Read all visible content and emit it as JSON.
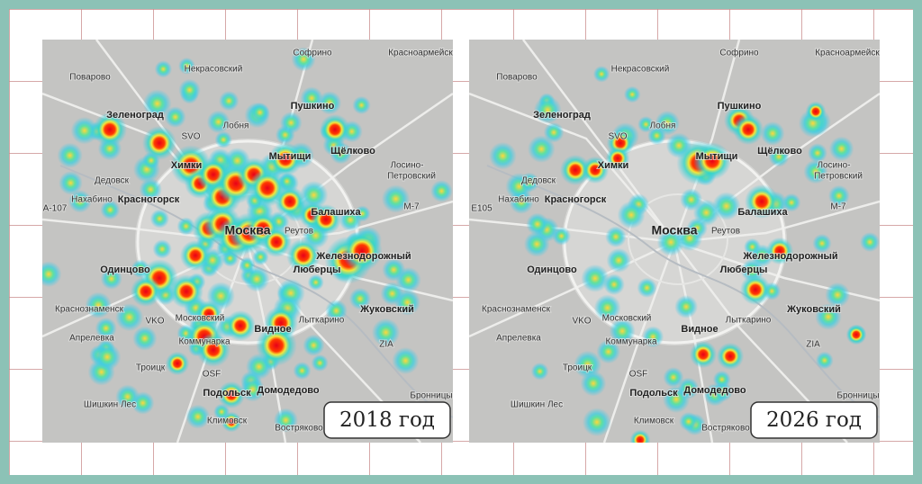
{
  "maps": [
    {
      "year_label": "2018 год",
      "places": [
        "Поварово",
        "Некрасовский",
        "Софрино",
        "Красноармейск",
        "Зеленоград",
        "Лобня",
        "SVO",
        "Пушкино",
        "Мытищи",
        "Щёлково",
        "Дедовск",
        "Химки",
        "Лосино-",
        "Петровский",
        "Нахабино",
        "Красногорск",
        "Балашиха",
        "Москва",
        "Реутов",
        "Железнодорожный",
        "Люберцы",
        "Одинцово",
        "Краснознаменск",
        "VKO",
        "Московский",
        "Лыткарино",
        "Жуковский",
        "Апрелевка",
        "Коммунарка",
        "Видное",
        "Троицк",
        "OSF",
        "Подольск",
        "Домодедово",
        "Бронницы",
        "Шишкин Лес",
        "Климовск",
        "Востряково",
        "ZIA",
        "M-7",
        "A-107"
      ]
    },
    {
      "year_label": "2026 год",
      "places": [
        "Поварово",
        "Некрасовский",
        "Софрино",
        "Красноармейск",
        "Зеленоград",
        "Лобня",
        "SVO",
        "Пушкино",
        "Мытищи",
        "Щёлково",
        "Дедовск",
        "Химки",
        "Лосино-",
        "Петровский",
        "Нахабино",
        "Красногорск",
        "Балашиха",
        "Москва",
        "Реутов",
        "Железнодорожный",
        "Люберцы",
        "Одинцово",
        "Краснознаменск",
        "VKO",
        "Московский",
        "Лыткарино",
        "Жуковский",
        "Апрелевка",
        "Коммунарка",
        "Видное",
        "Троицк",
        "OSF",
        "Подольск",
        "Домодедово",
        "Бронницы",
        "Шишкин Лес",
        "Климовск",
        "Востряково",
        "ZIA",
        "M-7",
        "E105"
      ]
    }
  ]
}
